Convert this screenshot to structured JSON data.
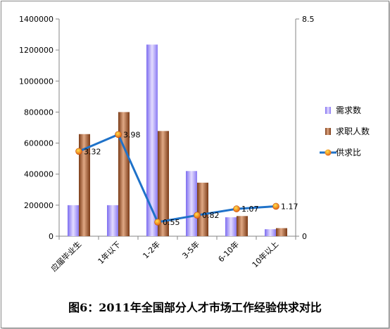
{
  "chart_data": {
    "type": "bar",
    "title": "图6：2011年全国部分人才市场工作经验供求对比",
    "categories": [
      "应届毕业生",
      "1年以下",
      "1-2年",
      "3-5年",
      "6-10年",
      "10年以上"
    ],
    "series": [
      {
        "name": "需求数",
        "type": "bar",
        "axis": "left",
        "color": "#b6a6f5",
        "values": [
          200000,
          200000,
          1235000,
          420000,
          122000,
          45000
        ]
      },
      {
        "name": "求职人数",
        "type": "bar",
        "axis": "left",
        "color": "#a5643c",
        "values": [
          658000,
          800000,
          678000,
          345000,
          130000,
          52000
        ]
      },
      {
        "name": "供求比",
        "type": "line",
        "axis": "right",
        "color": "#1f72c9",
        "marker_color": "#e8701a",
        "values": [
          3.32,
          3.98,
          0.55,
          0.82,
          1.07,
          1.17
        ],
        "labels": [
          "3.32",
          "3.98",
          "0.55",
          "0.82",
          "1.07",
          "1.17"
        ]
      }
    ],
    "y_left": {
      "range": [
        0,
        1400000
      ],
      "ticks": [
        "0",
        "200000",
        "400000",
        "600000",
        "800000",
        "1000000",
        "1200000",
        "1400000"
      ]
    },
    "y_right": {
      "range": [
        0,
        8.5
      ],
      "ticks": [
        "0",
        "8.5"
      ]
    },
    "legend": "right",
    "grid": false
  }
}
